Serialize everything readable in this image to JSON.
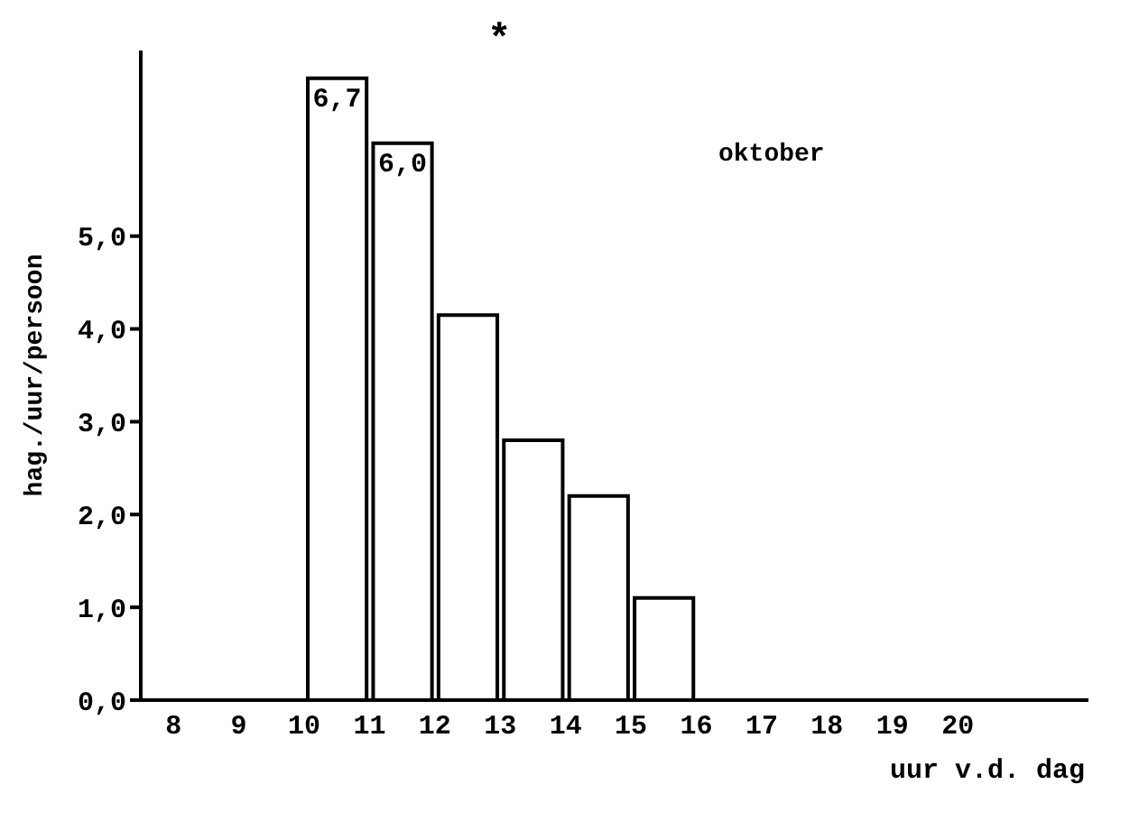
{
  "chart_data": {
    "type": "histogram",
    "xlabel": "uur v.d. dag",
    "ylabel": "hag./uur/persoon",
    "bins": [
      10,
      11,
      12,
      13,
      14,
      15,
      16
    ],
    "values": [
      6.7,
      6.0,
      4.15,
      2.8,
      2.2,
      1.1
    ],
    "value_labels": [
      "6,7",
      "6,0",
      null,
      null,
      null,
      null
    ],
    "color": "#ffffff",
    "xlim": [
      7.5,
      22
    ],
    "xticks": [
      8,
      9,
      10,
      11,
      12,
      13,
      14,
      15,
      16,
      17,
      18,
      19,
      20
    ],
    "ylim": [
      0,
      7
    ],
    "yticks": [
      {
        "value": 0,
        "label": "0,0"
      },
      {
        "value": 1,
        "label": "1,0"
      },
      {
        "value": 2,
        "label": "2,0"
      },
      {
        "value": 3,
        "label": "3,0"
      },
      {
        "value": 4,
        "label": "4,0"
      },
      {
        "value": 5,
        "label": "5,0"
      }
    ],
    "annotations": [
      "oktober",
      "*"
    ],
    "grid": false
  }
}
